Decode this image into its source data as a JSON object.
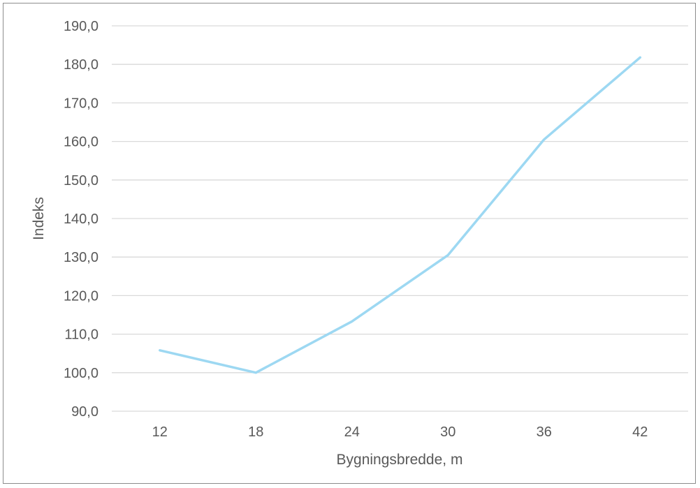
{
  "chart_data": {
    "type": "line",
    "title": "",
    "xlabel": "Bygningsbredde, m",
    "ylabel": "Indeks",
    "categories": [
      "12",
      "18",
      "24",
      "30",
      "36",
      "42"
    ],
    "series": [
      {
        "values": [
          105.8,
          100.0,
          113.3,
          130.5,
          160.5,
          181.8
        ]
      }
    ],
    "ylim": [
      90,
      190
    ],
    "ytick_step": 10,
    "ytick_labels": [
      "90,0",
      "100,0",
      "110,0",
      "120,0",
      "130,0",
      "140,0",
      "150,0",
      "160,0",
      "170,0",
      "180,0",
      "190,0"
    ],
    "grid": true,
    "legend": "none",
    "colors": {
      "line": "#9dd8f2",
      "grid": "#d9d9d9",
      "text": "#595959"
    }
  }
}
